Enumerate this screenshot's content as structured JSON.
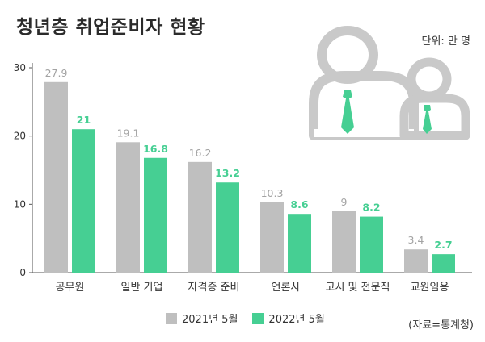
{
  "title": "청년층 취업준비자 현황",
  "unit": "단위: 만 명",
  "source": "(자료=통계청)",
  "colors": {
    "series_2021": "#bfbfbf",
    "series_2022": "#46cf93",
    "label_2021": "#a3a3a3",
    "label_2022": "#46cf93",
    "person_icon": "#c9c9c9",
    "tie": "#46cf93"
  },
  "chart_data": {
    "type": "bar",
    "title": "청년층 취업준비자 현황",
    "categories": [
      "공무원",
      "일반 기업",
      "자격증 준비",
      "언론사",
      "고시 및 전문직",
      "교원임용"
    ],
    "series": [
      {
        "name": "2021년 5월",
        "values": [
          27.9,
          19.1,
          16.2,
          10.3,
          9,
          3.4
        ],
        "labels": [
          "27.9",
          "19.1",
          "16.2",
          "10.3",
          "9",
          "3.4"
        ]
      },
      {
        "name": "2022년 5월",
        "values": [
          21,
          16.8,
          13.2,
          8.6,
          8.2,
          2.7
        ],
        "labels": [
          "21",
          "16.8",
          "13.2",
          "8.6",
          "8.2",
          "2.7"
        ]
      }
    ],
    "yticks": [
      0,
      10,
      20,
      30
    ],
    "ylim": [
      0,
      30
    ],
    "grid": false,
    "legend_position": "bottom"
  },
  "icons": [
    "person-large-icon",
    "person-small-icon"
  ]
}
